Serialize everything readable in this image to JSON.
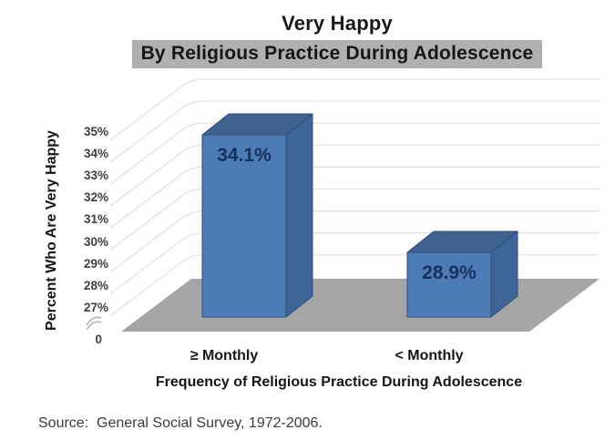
{
  "chart_data": {
    "type": "bar",
    "style": "3d-column",
    "title": "Very Happy",
    "subtitle": "By Religious Practice During Adolescence",
    "categories": [
      "≥ Monthly",
      "< Monthly"
    ],
    "values": [
      34.1,
      28.9
    ],
    "value_labels": [
      "34.1%",
      "28.9%"
    ],
    "xlabel": "Frequency of Religious Practice During Adolescence",
    "ylabel": "Percent Who Are Very Happy",
    "yticks": [
      "35%",
      "34%",
      "33%",
      "32%",
      "31%",
      "30%",
      "29%",
      "28%",
      "27%"
    ],
    "ytick_values": [
      35,
      34,
      33,
      32,
      31,
      30,
      29,
      28,
      27
    ],
    "zero_label": "0",
    "axis_break": true,
    "ylim_display": [
      27,
      35
    ],
    "grid": true,
    "legend": false,
    "colors": {
      "bar_front": "#4d7bb5",
      "bar_top": "#3f628f",
      "bar_side": "#3d6598",
      "bar_edge": "#2d4d7c",
      "value_label": "#16315b",
      "floor": "#a5a5a5",
      "gridline": "#dfdfdf",
      "axis_break_mark": "#b5b5b5",
      "subtitle_bg": "#b0b0b0"
    }
  },
  "source_note": "Source:  General Social Survey, 1972-2006."
}
